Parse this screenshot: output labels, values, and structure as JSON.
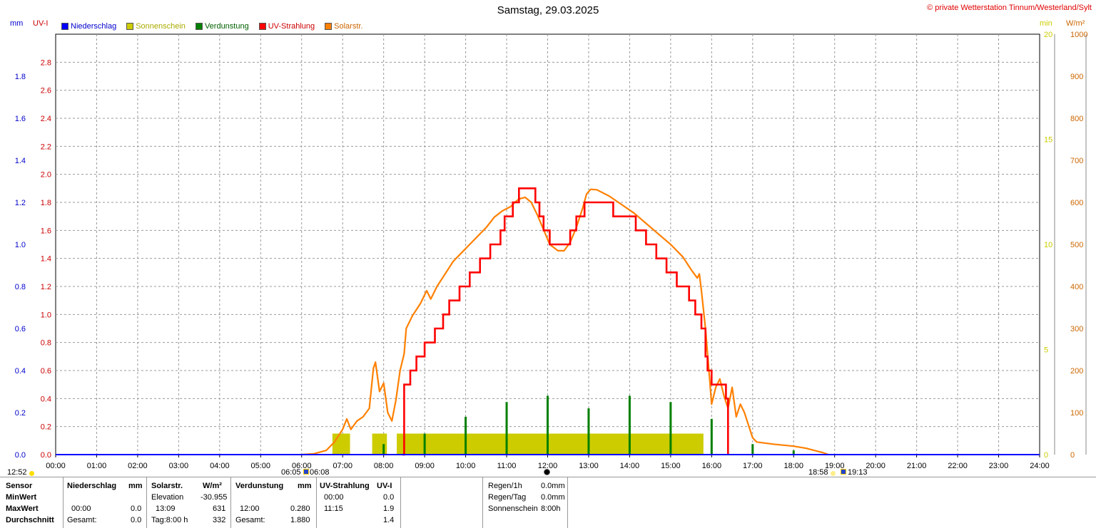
{
  "title": "Samstag, 29.03.2025",
  "copyright": "© private Wetterstation Tinnum/Westerland/Sylt",
  "units": {
    "mm": "mm",
    "uv": "UV-I",
    "min": "min",
    "wm2": "W/m²"
  },
  "legend": [
    {
      "label": "Niederschlag",
      "color": "#0000ff"
    },
    {
      "label": "Sonnenschein",
      "color": "#cccc00"
    },
    {
      "label": "Verdunstung",
      "color": "#008000"
    },
    {
      "label": "UV-Strahlung",
      "color": "#ff0000"
    },
    {
      "label": "Solarstr.",
      "color": "#ff8000"
    }
  ],
  "chart_data": {
    "type": "line",
    "x_range_hours": [
      0,
      24
    ],
    "x_tick_labels": [
      "00:00",
      "01:00",
      "02:00",
      "03:00",
      "04:00",
      "05:00",
      "06:00",
      "07:00",
      "08:00",
      "09:00",
      "10:00",
      "11:00",
      "12:00",
      "13:00",
      "14:00",
      "15:00",
      "16:00",
      "17:00",
      "18:00",
      "19:00",
      "20:00",
      "21:00",
      "22:00",
      "23:00",
      "24:00"
    ],
    "axes": {
      "mm": {
        "range": [
          0,
          2.0
        ],
        "ticks": [
          "0.0",
          "0.2",
          "0.4",
          "0.6",
          "0.8",
          "1.0",
          "1.2",
          "1.4",
          "1.6",
          "1.8"
        ],
        "color": "#0000cc"
      },
      "uv": {
        "range": [
          0,
          3.0
        ],
        "ticks": [
          "0.0",
          "0.2",
          "0.4",
          "0.6",
          "0.8",
          "1.0",
          "1.2",
          "1.4",
          "1.6",
          "1.8",
          "2.0",
          "2.2",
          "2.4",
          "2.6",
          "2.8"
        ],
        "color": "#cc0000"
      },
      "min": {
        "range": [
          0,
          20
        ],
        "ticks": [
          "0",
          "5",
          "10",
          "15",
          "20"
        ],
        "color": "#cccc00"
      },
      "wm2": {
        "range": [
          0,
          1000
        ],
        "ticks": [
          "0",
          "100",
          "200",
          "300",
          "400",
          "500",
          "600",
          "700",
          "800",
          "900",
          "1000"
        ],
        "color": "#cc6600"
      }
    },
    "grid": true,
    "series": [
      {
        "name": "Solarstr.",
        "axis": "wm2",
        "color": "#ff8000",
        "points": [
          [
            6.0,
            0
          ],
          [
            6.3,
            2
          ],
          [
            6.6,
            10
          ],
          [
            6.8,
            30
          ],
          [
            7.0,
            60
          ],
          [
            7.1,
            85
          ],
          [
            7.2,
            60
          ],
          [
            7.35,
            80
          ],
          [
            7.5,
            90
          ],
          [
            7.65,
            110
          ],
          [
            7.75,
            205
          ],
          [
            7.8,
            220
          ],
          [
            7.9,
            150
          ],
          [
            8.0,
            170
          ],
          [
            8.1,
            100
          ],
          [
            8.2,
            80
          ],
          [
            8.3,
            130
          ],
          [
            8.4,
            200
          ],
          [
            8.5,
            240
          ],
          [
            8.55,
            300
          ],
          [
            8.7,
            330
          ],
          [
            8.9,
            360
          ],
          [
            9.05,
            390
          ],
          [
            9.15,
            370
          ],
          [
            9.3,
            400
          ],
          [
            9.5,
            430
          ],
          [
            9.7,
            460
          ],
          [
            9.9,
            480
          ],
          [
            10.1,
            500
          ],
          [
            10.3,
            520
          ],
          [
            10.5,
            540
          ],
          [
            10.7,
            565
          ],
          [
            10.9,
            580
          ],
          [
            11.1,
            590
          ],
          [
            11.2,
            600
          ],
          [
            11.3,
            608
          ],
          [
            11.45,
            612
          ],
          [
            11.6,
            600
          ],
          [
            11.75,
            570
          ],
          [
            11.9,
            535
          ],
          [
            12.05,
            500
          ],
          [
            12.25,
            485
          ],
          [
            12.4,
            485
          ],
          [
            12.55,
            505
          ],
          [
            12.7,
            540
          ],
          [
            12.85,
            585
          ],
          [
            12.95,
            620
          ],
          [
            13.05,
            631
          ],
          [
            13.2,
            630
          ],
          [
            13.5,
            615
          ],
          [
            13.8,
            595
          ],
          [
            14.1,
            575
          ],
          [
            14.4,
            550
          ],
          [
            14.7,
            525
          ],
          [
            15.0,
            500
          ],
          [
            15.3,
            470
          ],
          [
            15.5,
            440
          ],
          [
            15.65,
            420
          ],
          [
            15.7,
            430
          ],
          [
            15.75,
            390
          ],
          [
            15.85,
            300
          ],
          [
            15.95,
            180
          ],
          [
            16.0,
            120
          ],
          [
            16.1,
            160
          ],
          [
            16.2,
            180
          ],
          [
            16.3,
            140
          ],
          [
            16.4,
            110
          ],
          [
            16.5,
            160
          ],
          [
            16.6,
            90
          ],
          [
            16.7,
            120
          ],
          [
            16.8,
            100
          ],
          [
            16.9,
            70
          ],
          [
            17.0,
            40
          ],
          [
            17.1,
            30
          ],
          [
            17.5,
            25
          ],
          [
            18.0,
            20
          ],
          [
            18.3,
            15
          ],
          [
            18.5,
            10
          ],
          [
            18.7,
            5
          ],
          [
            18.85,
            0
          ]
        ]
      },
      {
        "name": "UV-Strahlung",
        "axis": "uv",
        "color": "#ff0000",
        "points": [
          [
            8.45,
            0
          ],
          [
            8.5,
            0.5
          ],
          [
            8.65,
            0.6
          ],
          [
            8.8,
            0.7
          ],
          [
            9.0,
            0.8
          ],
          [
            9.25,
            0.9
          ],
          [
            9.45,
            1.0
          ],
          [
            9.6,
            1.1
          ],
          [
            9.85,
            1.2
          ],
          [
            10.1,
            1.3
          ],
          [
            10.35,
            1.4
          ],
          [
            10.6,
            1.5
          ],
          [
            10.85,
            1.6
          ],
          [
            10.95,
            1.7
          ],
          [
            11.15,
            1.8
          ],
          [
            11.3,
            1.9
          ],
          [
            11.7,
            1.8
          ],
          [
            11.8,
            1.7
          ],
          [
            11.9,
            1.6
          ],
          [
            12.05,
            1.5
          ],
          [
            12.55,
            1.6
          ],
          [
            12.7,
            1.7
          ],
          [
            12.9,
            1.8
          ],
          [
            13.6,
            1.7
          ],
          [
            14.15,
            1.6
          ],
          [
            14.4,
            1.5
          ],
          [
            14.65,
            1.4
          ],
          [
            14.9,
            1.3
          ],
          [
            15.15,
            1.2
          ],
          [
            15.45,
            1.1
          ],
          [
            15.6,
            1.0
          ],
          [
            15.75,
            0.9
          ],
          [
            15.85,
            0.7
          ],
          [
            15.9,
            0.6
          ],
          [
            16.0,
            0.5
          ],
          [
            16.35,
            0.4
          ],
          [
            16.4,
            0.0
          ]
        ]
      },
      {
        "name": "Verdunstung",
        "axis": "mm",
        "color": "#008000",
        "spikes": [
          [
            8.0,
            0.05
          ],
          [
            9.0,
            0.1
          ],
          [
            10.0,
            0.18
          ],
          [
            11.0,
            0.25
          ],
          [
            12.0,
            0.28
          ],
          [
            13.0,
            0.22
          ],
          [
            14.0,
            0.28
          ],
          [
            15.0,
            0.25
          ],
          [
            16.0,
            0.17
          ],
          [
            17.0,
            0.05
          ],
          [
            18.0,
            0.02
          ]
        ]
      },
      {
        "name": "Sonnenschein",
        "axis": "min",
        "color": "#cccc00",
        "bars": [
          [
            6.75,
            7.18,
            1.0
          ],
          [
            7.72,
            8.08,
            1.0
          ],
          [
            8.32,
            15.8,
            1.0
          ]
        ]
      }
    ]
  },
  "sun_markers": {
    "left_time": "12:52",
    "sunrise_a": "06:05",
    "sunrise_b": "06:08",
    "sunset_a": "18:58",
    "sunset_b": "19:13"
  },
  "stats": {
    "sensor": {
      "header": "Sensor",
      "rows": [
        "MinWert",
        "MaxWert",
        "Durchschnitt"
      ]
    },
    "niederschlag": {
      "header": "Niederschlag",
      "unit": "mm",
      "max_time": "00:00",
      "max": "0.0",
      "avg_label": "Gesamt:",
      "avg": "0.0"
    },
    "solar": {
      "header": "Solarstr.",
      "unit": "W/m²",
      "min_label": "Elevation",
      "min": "-30.955",
      "max_time": "13:09",
      "max": "631",
      "avg_label": "Tag:8:00 h",
      "avg": "332"
    },
    "verdunstung": {
      "header": "Verdunstung",
      "unit": "mm",
      "max_time": "12:00",
      "max": "0.280",
      "avg_label": "Gesamt:",
      "avg": "1.880"
    },
    "uv": {
      "header": "UV-Strahlung",
      "unit": "UV-I",
      "min_time": "00:00",
      "min": "0.0",
      "max_time": "11:15",
      "max": "1.9",
      "avg": "1.4"
    },
    "rain": {
      "r1_label": "Regen/1h",
      "r1": "0.0mm",
      "r2_label": "Regen/Tag",
      "r2": "0.0mm",
      "sun_label": "Sonnenschein",
      "sun": "8:00h"
    }
  }
}
